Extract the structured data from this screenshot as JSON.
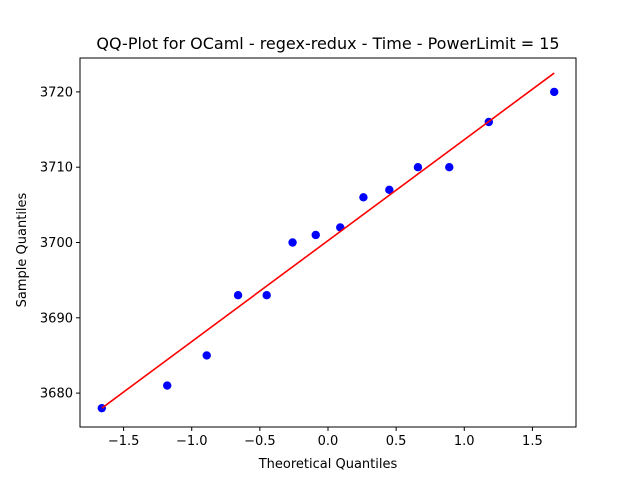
{
  "chart_data": {
    "type": "scatter",
    "title": "QQ-Plot for OCaml - regex-redux - Time - PowerLimit = 15",
    "xlabel": "Theoretical Quantiles",
    "ylabel": "Sample Quantiles",
    "xlim": [
      -1.82,
      1.82
    ],
    "ylim": [
      3675.5,
      3724.5
    ],
    "xticks": [
      -1.5,
      -1.0,
      -0.5,
      0.0,
      0.5,
      1.0,
      1.5
    ],
    "xtick_labels": [
      "−1.5",
      "−1.0",
      "−0.5",
      "0.0",
      "0.5",
      "1.0",
      "1.5"
    ],
    "yticks": [
      3680,
      3690,
      3700,
      3710,
      3720
    ],
    "ytick_labels": [
      "3680",
      "3690",
      "3700",
      "3710",
      "3720"
    ],
    "grid": false,
    "series": [
      {
        "marker_color": "#0000ff",
        "x": [
          -1.66,
          -1.18,
          -0.89,
          -0.66,
          -0.45,
          -0.26,
          -0.09,
          0.09,
          0.26,
          0.45,
          0.66,
          0.89,
          1.18,
          1.66
        ],
        "y": [
          3678,
          3681,
          3685,
          3693,
          3693,
          3700,
          3701,
          3702,
          3706,
          3707,
          3710,
          3710,
          3716,
          3720
        ]
      }
    ],
    "fit_line": {
      "color": "#ff0000",
      "x": [
        -1.66,
        1.66
      ],
      "y": [
        3678,
        3722.5
      ]
    }
  }
}
